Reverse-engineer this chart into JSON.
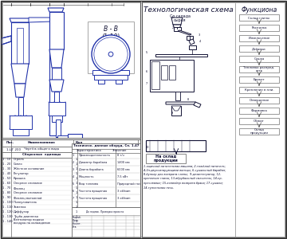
{
  "bg_color": "#e8e8e4",
  "blue": "#2233aa",
  "dark": "#111133",
  "mid": "#4455bb",
  "gray": "#888899",
  "white": "#ffffff",
  "tech_title": "Технологическая схема",
  "func_title": "Функциона",
  "raw_label": "Со склада\nсырья",
  "out_label": "На склад\nпродукции",
  "section_bb": "В - В\n(1:10)",
  "func_steps": [
    "Склад глины",
    "Распилка",
    "Измельчение",
    "Добавки",
    "Сушка",
    "Тепловая распред.\nсеть",
    "Брикет",
    "Крепление в пли.",
    "Отвердение",
    "Формовка",
    "Обжиг",
    "Склад\nпродукции"
  ],
  "desc_lines": [
    "1-ящичный-питательная машина; 2-тяжёлый питатель;",
    "4,3н-двухситирующими вальцы; 6-сушильный барабан;",
    "8-бункер для возврата глины;  9-дезинтегратор; 12-",
    "крепление глины; 13-вбрубальный смеситель; 14-пр-",
    "пресование; 15-конвейер возврата брака; 17-сушили;",
    "14-туннельная печь."
  ],
  "left_rows": [
    [
      "1-ЦГ 200",
      "Чертёж общего вида",
      ""
    ],
    [
      "",
      "Сборочные единицы",
      ""
    ],
    [
      "1 - 10",
      "Стрела",
      "1"
    ],
    [
      "1 - 20",
      "Сопло",
      "1"
    ],
    [
      "1 - 30",
      "Жёсткое основание",
      "1"
    ],
    [
      "1 - 40",
      "Регулятор",
      "1"
    ],
    [
      "1 - 50",
      "Крышка",
      "1"
    ],
    [
      "1 - 60",
      "Опорное снование",
      "1"
    ],
    [
      "1 - 70",
      "Фланец",
      "1"
    ],
    [
      "1 - 80",
      "Опорное снование",
      "1"
    ],
    [
      "1 - 90",
      "Фланец вытяжной",
      "1"
    ],
    [
      "1 - 100",
      "Пылеуловитель",
      "1"
    ],
    [
      "1 - 110",
      "Заменка",
      "1"
    ],
    [
      "1 - 120",
      "Диффузор",
      "1"
    ],
    [
      "1 - 130",
      "Труба длиннная",
      "1"
    ],
    [
      "1 - 140",
      "Вентилятор подачи воздуха на охлаждение",
      "1"
    ]
  ],
  "spec_params": [
    [
      "1",
      "Производительность",
      "8 т/ч"
    ],
    [
      "2",
      "Диаметр барабана",
      "1400 мм"
    ],
    [
      "3",
      "Длина барабана",
      "6000 мм"
    ],
    [
      "4",
      "Мощность",
      "7,5 кВт"
    ],
    [
      "5",
      "Вид топлива",
      "Природный газ"
    ],
    [
      "6",
      "Частота вращения",
      "3 об/мин"
    ]
  ]
}
